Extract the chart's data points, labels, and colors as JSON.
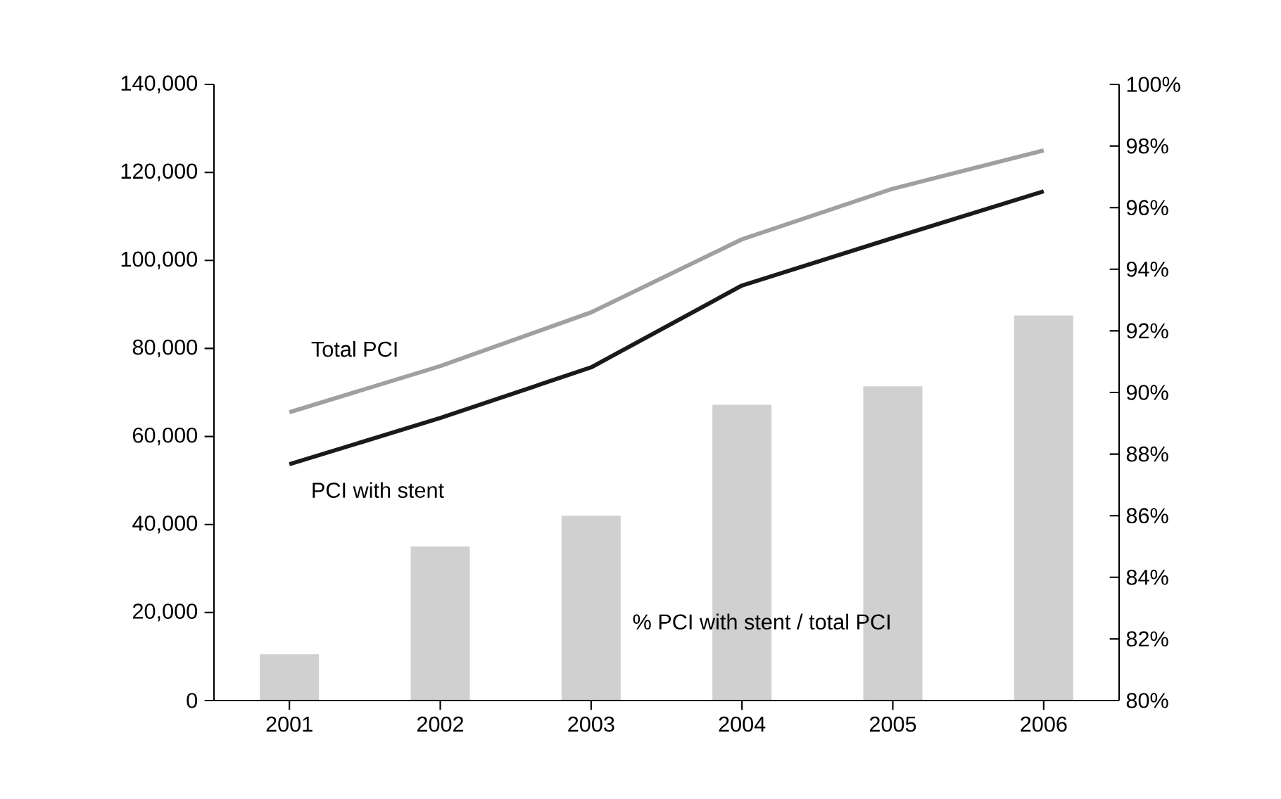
{
  "chart_data": {
    "type": "line",
    "categories": [
      "2001",
      "2002",
      "2003",
      "2004",
      "2005",
      "2006"
    ],
    "series": [
      {
        "name": "% PCI with stent / total PCI",
        "type": "bar",
        "axis": "y2",
        "color": "#d0d0d0",
        "values": [
          81.5,
          85.0,
          86.0,
          89.6,
          90.2,
          92.5
        ]
      },
      {
        "name": "Total PCI",
        "color": "#a0a0a0",
        "values": [
          65500,
          76000,
          88200,
          104800,
          116300,
          125000
        ]
      },
      {
        "name": "PCI with stent",
        "color": "#1a1a1a",
        "values": [
          53700,
          64200,
          75700,
          94300,
          105100,
          115700
        ]
      }
    ],
    "ylim": [
      0,
      140000
    ],
    "yticks": [
      {
        "value": 0,
        "label": "0"
      },
      {
        "value": 20000,
        "label": "20,000"
      },
      {
        "value": 40000,
        "label": "40,000"
      },
      {
        "value": 60000,
        "label": "60,000"
      },
      {
        "value": 80000,
        "label": "80,000"
      },
      {
        "value": 100000,
        "label": "100,000"
      },
      {
        "value": 120000,
        "label": "120,000"
      },
      {
        "value": 140000,
        "label": "140,000"
      }
    ],
    "y2lim": [
      80,
      100
    ],
    "y2ticks": [
      {
        "value": 80,
        "label": "80%"
      },
      {
        "value": 82,
        "label": "82%"
      },
      {
        "value": 84,
        "label": "84%"
      },
      {
        "value": 86,
        "label": "86%"
      },
      {
        "value": 88,
        "label": "88%"
      },
      {
        "value": 90,
        "label": "90%"
      },
      {
        "value": 92,
        "label": "92%"
      },
      {
        "value": 94,
        "label": "94%"
      },
      {
        "value": 96,
        "label": "96%"
      },
      {
        "value": 98,
        "label": "98%"
      },
      {
        "value": 100,
        "label": "100%"
      }
    ],
    "grid": false,
    "marker": "none",
    "line_style": "solid"
  }
}
